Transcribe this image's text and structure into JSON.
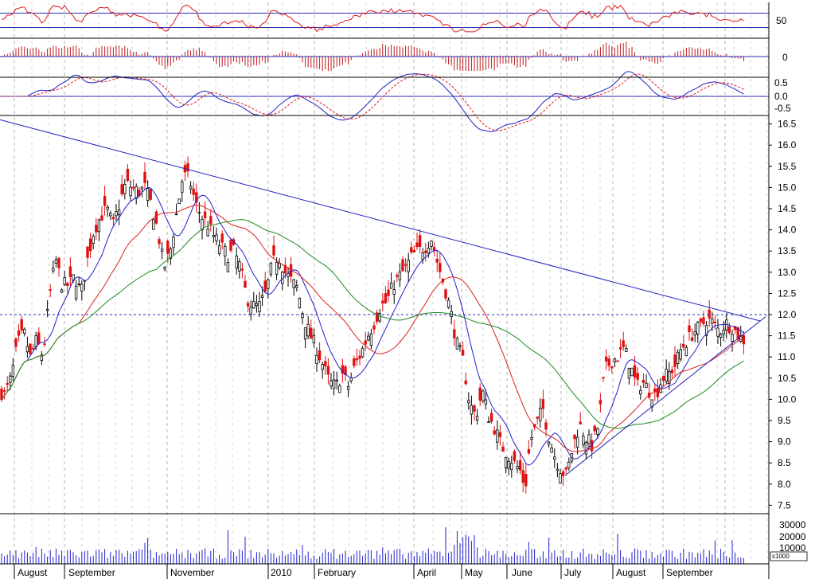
{
  "chart_data": {
    "type": "candlestick",
    "colors": {
      "background": "#ffffff",
      "frame": "#000000",
      "grid": "#b4b4b4",
      "trendline": "#2020c0",
      "ma_fast": "#1f1fd0",
      "ma_mid": "#dc2020",
      "ma_slow": "#1a8a1a",
      "candle_down": "#e01010",
      "candle_up": "#000000",
      "volume": "#2020d0",
      "histogram": "#c01818",
      "rsi": "#e01818",
      "macd_line": "#2020c0",
      "macd_signal": "#e01818",
      "reference_line": "#2a2ab0"
    },
    "x_labels": [
      "August",
      "September",
      "November",
      "2010",
      "February",
      "April",
      "May",
      "June",
      "July",
      "August",
      "September"
    ],
    "price_axis": {
      "ticks": [
        "7.5",
        "8.0",
        "8.5",
        "9.0",
        "9.5",
        "10.0",
        "10.5",
        "11.0",
        "11.5",
        "12.0",
        "12.5",
        "13.0",
        "13.5",
        "14.0",
        "14.5",
        "15.0",
        "15.5",
        "16.0",
        "16.5"
      ],
      "ylim": [
        7.3,
        16.7
      ],
      "reference_level": 12.0
    },
    "rsi_panel": {
      "ticks": [
        "50"
      ],
      "levels": [
        70,
        30
      ]
    },
    "histogram_panel": {
      "ticks": [
        "0"
      ]
    },
    "macd_panel": {
      "ticks": [
        "0.5",
        "0.0",
        "-0.5"
      ]
    },
    "volume_panel": {
      "ticks": [
        "30000",
        "20000",
        "10000"
      ],
      "unit_label": "x1000"
    },
    "close_series": [
      [
        0,
        10.2
      ],
      [
        6,
        10.1
      ],
      [
        14,
        10.5
      ],
      [
        22,
        11.3
      ],
      [
        30,
        11.6
      ],
      [
        38,
        11.0
      ],
      [
        46,
        11.4
      ],
      [
        54,
        11.0
      ],
      [
        62,
        12.4
      ],
      [
        70,
        13.3
      ],
      [
        78,
        12.7
      ],
      [
        86,
        12.7
      ],
      [
        94,
        12.9
      ],
      [
        102,
        12.5
      ],
      [
        110,
        13.3
      ],
      [
        118,
        14.0
      ],
      [
        126,
        14.3
      ],
      [
        134,
        14.5
      ],
      [
        142,
        14.1
      ],
      [
        150,
        14.6
      ],
      [
        158,
        15.1
      ],
      [
        166,
        15.0
      ],
      [
        174,
        14.9
      ],
      [
        182,
        15.0
      ],
      [
        190,
        14.6
      ],
      [
        198,
        14.0
      ],
      [
        206,
        13.1
      ],
      [
        214,
        13.5
      ],
      [
        222,
        14.4
      ],
      [
        230,
        15.3
      ],
      [
        238,
        15.2
      ],
      [
        246,
        14.6
      ],
      [
        254,
        14.3
      ],
      [
        262,
        14.1
      ],
      [
        270,
        13.8
      ],
      [
        278,
        13.6
      ],
      [
        286,
        13.4
      ],
      [
        294,
        13.5
      ],
      [
        302,
        13.1
      ],
      [
        310,
        12.4
      ],
      [
        318,
        12.2
      ],
      [
        326,
        12.2
      ],
      [
        334,
        12.5
      ],
      [
        342,
        13.2
      ],
      [
        350,
        13.4
      ],
      [
        358,
        13.0
      ],
      [
        366,
        12.8
      ],
      [
        374,
        12.6
      ],
      [
        382,
        11.9
      ],
      [
        390,
        11.5
      ],
      [
        398,
        11.2
      ],
      [
        406,
        10.8
      ],
      [
        414,
        10.4
      ],
      [
        422,
        10.3
      ],
      [
        430,
        10.6
      ],
      [
        438,
        10.3
      ],
      [
        446,
        10.8
      ],
      [
        454,
        11.1
      ],
      [
        462,
        11.5
      ],
      [
        470,
        11.8
      ],
      [
        478,
        12.2
      ],
      [
        486,
        12.3
      ],
      [
        494,
        12.7
      ],
      [
        502,
        12.9
      ],
      [
        510,
        13.1
      ],
      [
        518,
        13.4
      ],
      [
        526,
        13.5
      ],
      [
        534,
        13.6
      ],
      [
        542,
        13.8
      ],
      [
        550,
        13.2
      ],
      [
        558,
        12.7
      ],
      [
        566,
        12.1
      ],
      [
        574,
        11.3
      ],
      [
        582,
        10.9
      ],
      [
        590,
        9.9
      ],
      [
        598,
        9.6
      ],
      [
        606,
        10.2
      ],
      [
        614,
        9.6
      ],
      [
        622,
        9.3
      ],
      [
        630,
        8.9
      ],
      [
        638,
        8.7
      ],
      [
        646,
        8.5
      ],
      [
        654,
        8.3
      ],
      [
        660,
        7.9
      ],
      [
        666,
        9.0
      ],
      [
        674,
        9.4
      ],
      [
        682,
        9.8
      ],
      [
        690,
        9.1
      ],
      [
        698,
        8.6
      ],
      [
        706,
        8.3
      ],
      [
        712,
        8.2
      ],
      [
        720,
        8.9
      ],
      [
        728,
        9.4
      ],
      [
        736,
        9.1
      ],
      [
        744,
        8.9
      ],
      [
        752,
        9.4
      ],
      [
        760,
        10.7
      ],
      [
        768,
        10.9
      ],
      [
        776,
        11.0
      ],
      [
        784,
        11.2
      ],
      [
        792,
        10.8
      ],
      [
        800,
        10.3
      ],
      [
        808,
        10.4
      ],
      [
        816,
        10.2
      ],
      [
        824,
        10.1
      ],
      [
        832,
        10.5
      ],
      [
        840,
        10.6
      ],
      [
        848,
        10.8
      ],
      [
        856,
        11.2
      ],
      [
        864,
        11.4
      ],
      [
        872,
        11.6
      ],
      [
        880,
        11.7
      ],
      [
        888,
        11.9
      ],
      [
        896,
        11.8
      ],
      [
        904,
        11.6
      ],
      [
        912,
        11.8
      ],
      [
        920,
        11.7
      ],
      [
        928,
        11.5
      ],
      [
        934,
        11.4
      ]
    ]
  }
}
